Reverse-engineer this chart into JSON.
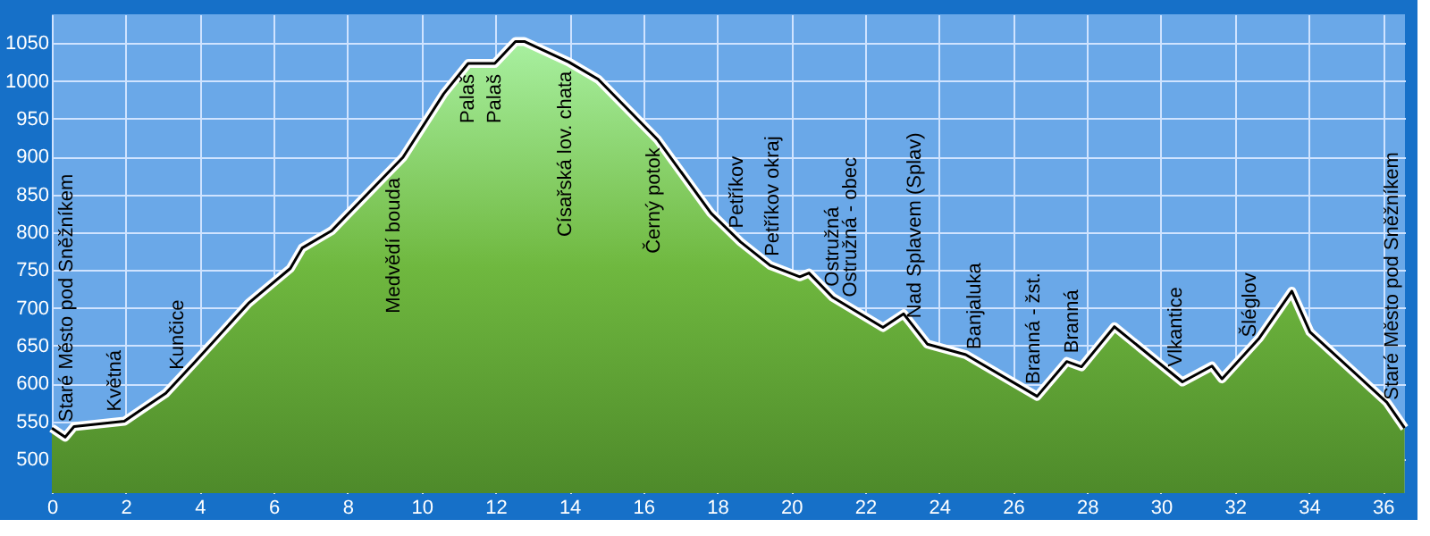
{
  "chart_data": {
    "type": "area",
    "x": [
      0,
      0.36,
      0.6,
      1.96,
      2.44,
      3.08,
      3.88,
      5.32,
      6.45,
      6.77,
      7.57,
      9.5,
      10.6,
      11.26,
      11.98,
      12.54,
      12.78,
      13.98,
      14.78,
      16.39,
      17.83,
      18.63,
      19.43,
      20.23,
      20.48,
      21.12,
      22.48,
      23.04,
      23.68,
      24.72,
      26.65,
      27.45,
      27.85,
      28.74,
      30.58,
      31.38,
      31.65,
      32.66,
      33.54,
      34.03,
      36.11,
      36.59
    ],
    "series": [
      {
        "color": "#6fb83f",
        "values": [
          541,
          529,
          543,
          550,
          566,
          587,
          629,
          706,
          752,
          779,
          802,
          899,
          983,
          1023,
          1023,
          1052,
          1052,
          1025,
          1002,
          922,
          825,
          787,
          756,
          741,
          746,
          714,
          674,
          692,
          652,
          638,
          583,
          629,
          622,
          675,
          602,
          623,
          606,
          660,
          722,
          668,
          575,
          541
        ]
      }
    ],
    "xlim": [
      0,
      36.6
    ],
    "ylim": [
      455,
      1088
    ],
    "xticks": [
      0,
      2,
      4,
      6,
      8,
      10,
      12,
      14,
      16,
      18,
      20,
      22,
      24,
      26,
      28,
      30,
      32,
      34,
      36
    ],
    "yticks": [
      500,
      550,
      600,
      650,
      700,
      750,
      800,
      850,
      900,
      950,
      1000,
      1050
    ],
    "grid": true,
    "annotations": [
      {
        "text": "Staré Město pod Sněžníkem",
        "x": 0.42,
        "y": 535
      },
      {
        "text": "Květná",
        "x": 1.72,
        "y": 549
      },
      {
        "text": "Kunčice",
        "x": 3.4,
        "y": 604
      },
      {
        "text": "Medvědí bouda",
        "x": 9.25,
        "y": 886
      },
      {
        "text": "Palaš",
        "x": 11.26,
        "y": 1023
      },
      {
        "text": "Palaš",
        "x": 11.98,
        "y": 1023
      },
      {
        "text": "Císařská lov. chata",
        "x": 13.9,
        "y": 1027
      },
      {
        "text": "Černý potok",
        "x": 16.3,
        "y": 926
      },
      {
        "text": "Petříkov",
        "x": 18.55,
        "y": 791
      },
      {
        "text": "Petříkov okraj",
        "x": 19.51,
        "y": 754
      },
      {
        "text": "Ostružná",
        "x": 21.12,
        "y": 714
      },
      {
        "text": "Ostružná - obec",
        "x": 21.6,
        "y": 700
      },
      {
        "text": "Nad Splavem (Splav)",
        "x": 23.36,
        "y": 672
      },
      {
        "text": "Banjaluka",
        "x": 24.97,
        "y": 631
      },
      {
        "text": "Branná - žst.",
        "x": 26.57,
        "y": 585
      },
      {
        "text": "Branná",
        "x": 27.61,
        "y": 626
      },
      {
        "text": "Vlkantice",
        "x": 30.42,
        "y": 608
      },
      {
        "text": "Šléglov",
        "x": 32.42,
        "y": 647
      },
      {
        "text": "Staré Město pod Sněžníkem",
        "x": 36.27,
        "y": 564
      }
    ]
  }
}
